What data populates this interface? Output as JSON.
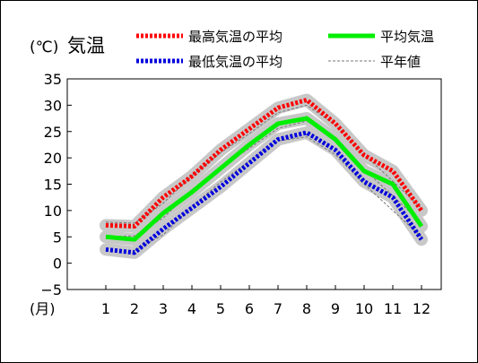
{
  "chart_data": {
    "type": "line",
    "title": "気温",
    "ylabel": "(℃)",
    "xlabel": "(月)",
    "categories": [
      "1",
      "2",
      "3",
      "4",
      "5",
      "6",
      "7",
      "8",
      "9",
      "10",
      "11",
      "12"
    ],
    "ylim": [
      -5,
      35
    ],
    "yticks": [
      "35",
      "30",
      "25",
      "20",
      "15",
      "10",
      "5",
      "0",
      "−5"
    ],
    "grid": false,
    "series": [
      {
        "name": "最高気温の平均",
        "color": "#ff0000",
        "style": "dotted",
        "values": [
          7.2,
          7.0,
          12.5,
          16.5,
          21.5,
          25.5,
          29.5,
          31.0,
          26.5,
          20.5,
          17.5,
          10.0
        ]
      },
      {
        "name": "平均気温",
        "color": "#00ee00",
        "style": "solid",
        "values": [
          5.0,
          4.5,
          9.5,
          13.5,
          18.0,
          22.5,
          26.5,
          27.5,
          23.5,
          17.5,
          15.0,
          7.0
        ]
      },
      {
        "name": "最低気温の平均",
        "color": "#0000dd",
        "style": "dotted",
        "values": [
          2.6,
          2.0,
          6.5,
          10.5,
          14.5,
          19.0,
          23.5,
          24.8,
          21.5,
          15.5,
          12.5,
          4.5
        ]
      },
      {
        "name": "平年値",
        "color": "#777777",
        "style": "dashed",
        "values": null,
        "normals": [
          [
            7.8,
            7.6,
            11.4,
            16.6,
            21.0,
            24.6,
            28.6,
            30.0,
            26.2,
            20.6,
            15.6,
            10.4
          ],
          [
            5.0,
            5.2,
            8.6,
            13.8,
            18.2,
            21.8,
            25.6,
            27.0,
            23.4,
            17.8,
            12.8,
            7.6
          ],
          [
            2.4,
            2.4,
            5.4,
            10.8,
            15.4,
            19.4,
            23.2,
            24.0,
            20.6,
            15.0,
            10.0,
            5.0
          ]
        ]
      }
    ],
    "legend_position": "top"
  }
}
